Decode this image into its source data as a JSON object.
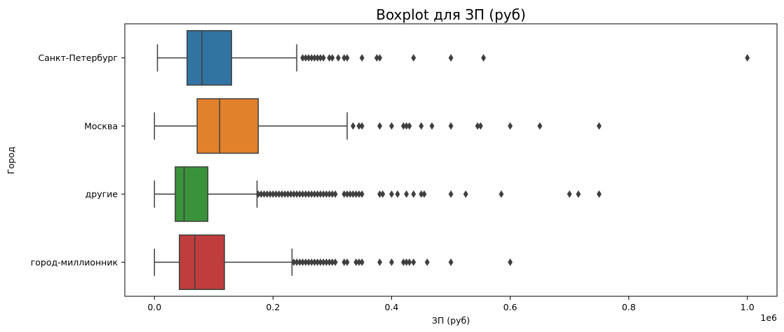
{
  "chart_data": {
    "type": "boxplot",
    "orientation": "horizontal",
    "title": "Boxplot для ЗП (руб)",
    "xlabel": "ЗП (руб)",
    "ylabel": "Город",
    "x_offset_label": "1e6",
    "xlim": [
      -0.05,
      1.05
    ],
    "x_scale_note": "values in units of 1e6",
    "x_ticks": [
      0.0,
      0.2,
      0.4,
      0.6,
      0.8,
      1.0
    ],
    "x_tick_labels": [
      "0.0",
      "0.2",
      "0.4",
      "0.6",
      "0.8",
      "1.0"
    ],
    "categories": [
      "Санкт-Петербург",
      "Москва",
      "другие",
      "город-миллионник"
    ],
    "grid": false,
    "series": [
      {
        "category": "Санкт-Петербург",
        "color": "#3274a1",
        "whisker_low": 0.005,
        "q1": 0.055,
        "median": 0.08,
        "q3": 0.13,
        "whisker_high": 0.24,
        "outliers": [
          0.25,
          0.255,
          0.26,
          0.265,
          0.27,
          0.275,
          0.28,
          0.285,
          0.295,
          0.3,
          0.31,
          0.32,
          0.325,
          0.35,
          0.375,
          0.38,
          0.437,
          0.5,
          0.555,
          1.0
        ]
      },
      {
        "category": "Москва",
        "color": "#e1812c",
        "whisker_low": 0.0,
        "q1": 0.072,
        "median": 0.11,
        "q3": 0.175,
        "whisker_high": 0.325,
        "outliers": [
          0.335,
          0.345,
          0.35,
          0.38,
          0.4,
          0.42,
          0.425,
          0.43,
          0.45,
          0.468,
          0.5,
          0.545,
          0.55,
          0.6,
          0.65,
          0.75
        ]
      },
      {
        "category": "другие",
        "color": "#3a923a",
        "whisker_low": 0.0,
        "q1": 0.035,
        "median": 0.05,
        "q3": 0.09,
        "whisker_high": 0.173,
        "outliers": [
          0.175,
          0.18,
          0.185,
          0.19,
          0.195,
          0.2,
          0.205,
          0.21,
          0.215,
          0.22,
          0.225,
          0.23,
          0.235,
          0.24,
          0.245,
          0.25,
          0.255,
          0.26,
          0.265,
          0.27,
          0.275,
          0.28,
          0.285,
          0.29,
          0.295,
          0.3,
          0.305,
          0.32,
          0.325,
          0.33,
          0.335,
          0.34,
          0.345,
          0.35,
          0.38,
          0.385,
          0.4,
          0.41,
          0.425,
          0.437,
          0.45,
          0.455,
          0.5,
          0.525,
          0.585,
          0.7,
          0.715,
          0.75
        ]
      },
      {
        "category": "город-миллионник",
        "color": "#c03d3e",
        "whisker_low": 0.0,
        "q1": 0.042,
        "median": 0.068,
        "q3": 0.118,
        "whisker_high": 0.232,
        "outliers": [
          0.235,
          0.24,
          0.245,
          0.25,
          0.255,
          0.26,
          0.265,
          0.27,
          0.275,
          0.28,
          0.285,
          0.29,
          0.295,
          0.3,
          0.305,
          0.32,
          0.325,
          0.34,
          0.345,
          0.35,
          0.38,
          0.4,
          0.42,
          0.425,
          0.43,
          0.437,
          0.46,
          0.5,
          0.6
        ]
      }
    ]
  }
}
